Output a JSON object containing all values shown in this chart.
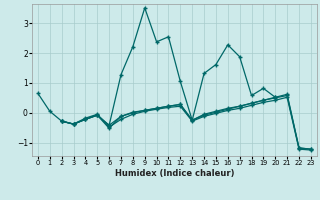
{
  "xlabel": "Humidex (Indice chaleur)",
  "background_color": "#cdeaea",
  "grid_color": "#a8cccc",
  "line_color": "#006868",
  "xlim": [
    -0.5,
    23.5
  ],
  "ylim": [
    -1.45,
    3.65
  ],
  "yticks": [
    -1,
    0,
    1,
    2,
    3
  ],
  "xticks": [
    0,
    1,
    2,
    3,
    4,
    5,
    6,
    7,
    8,
    9,
    10,
    11,
    12,
    13,
    14,
    15,
    16,
    17,
    18,
    19,
    20,
    21,
    22,
    23
  ],
  "line1_x": [
    0,
    1,
    2,
    3,
    4,
    5,
    6,
    7,
    8,
    9,
    10,
    11,
    12,
    13,
    14,
    15,
    16,
    17,
    18,
    19,
    20
  ],
  "line1_y": [
    0.65,
    0.05,
    -0.28,
    -0.38,
    -0.22,
    -0.08,
    -0.42,
    1.28,
    2.22,
    3.52,
    2.38,
    2.55,
    1.05,
    -0.25,
    1.32,
    1.62,
    2.28,
    1.88,
    0.58,
    0.82,
    0.52
  ],
  "line2_x": [
    2,
    3,
    4,
    5,
    6,
    7,
    8,
    9,
    10,
    11,
    12,
    13,
    14,
    15,
    16,
    17,
    18,
    19,
    20,
    21,
    22,
    23
  ],
  "line2_y": [
    -0.28,
    -0.38,
    -0.22,
    -0.08,
    -0.42,
    -0.12,
    0.02,
    0.08,
    0.15,
    0.22,
    0.28,
    -0.25,
    -0.08,
    0.02,
    0.12,
    0.22,
    0.32,
    0.42,
    0.52,
    0.62,
    -1.18,
    -1.22
  ],
  "line3_x": [
    2,
    3,
    4,
    5,
    6,
    7,
    8,
    9,
    10,
    11,
    12,
    13,
    14,
    15,
    16,
    17,
    18,
    19,
    20,
    21,
    22,
    23
  ],
  "line3_y": [
    -0.28,
    -0.38,
    -0.22,
    -0.08,
    -0.52,
    -0.12,
    0.0,
    0.08,
    0.15,
    0.22,
    0.28,
    -0.25,
    -0.05,
    0.05,
    0.15,
    0.22,
    0.32,
    0.42,
    0.5,
    0.58,
    -1.18,
    -1.22
  ],
  "line4_x": [
    2,
    3,
    4,
    5,
    6,
    7,
    8,
    9,
    10,
    11,
    12,
    13,
    14,
    15,
    16,
    17,
    18,
    19,
    20,
    21,
    22,
    23
  ],
  "line4_y": [
    -0.28,
    -0.38,
    -0.18,
    -0.05,
    -0.48,
    -0.22,
    -0.05,
    0.05,
    0.12,
    0.18,
    0.22,
    -0.28,
    -0.12,
    -0.02,
    0.08,
    0.15,
    0.25,
    0.35,
    0.42,
    0.52,
    -1.22,
    -1.25
  ]
}
